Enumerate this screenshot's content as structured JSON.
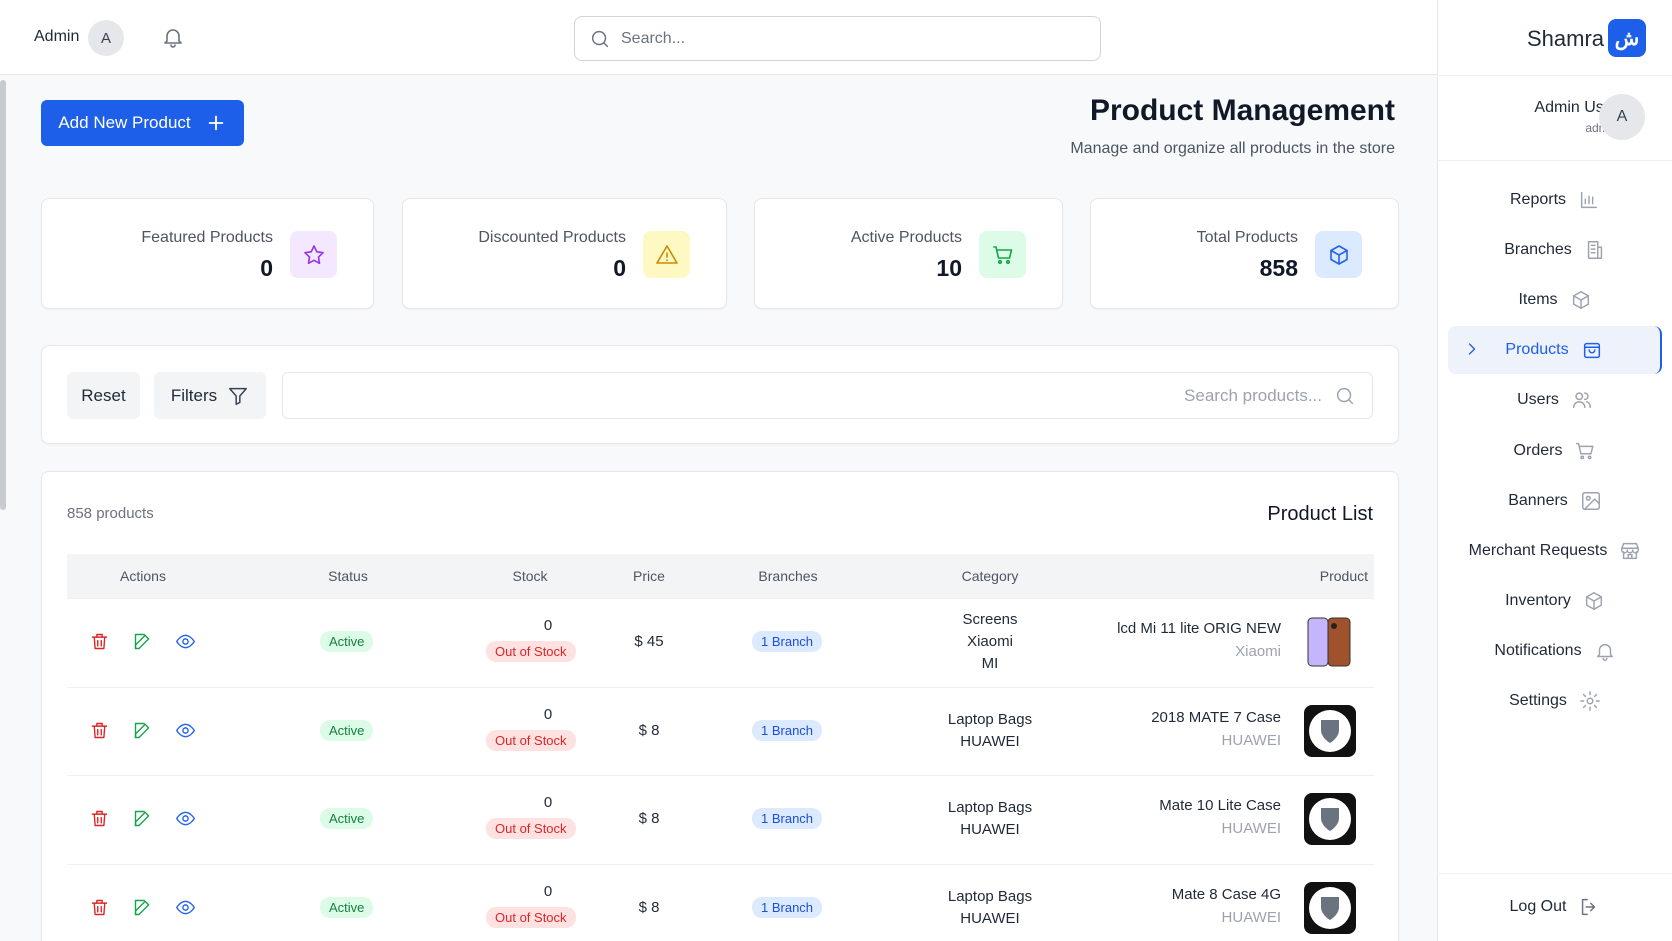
{
  "header": {
    "user": "Admin",
    "avatar": "A",
    "search_placeholder": "Search..."
  },
  "sidebar": {
    "brand": "Shamra",
    "logo": "ش",
    "user_name": "Admin User",
    "user_role": "admin",
    "avatar": "A",
    "nav": [
      "Reports",
      "Branches",
      "Items",
      "Products",
      "Users",
      "Orders",
      "Banners",
      "Merchant Requests",
      "Inventory",
      "Notifications",
      "Settings"
    ],
    "logout": "Log Out"
  },
  "page": {
    "title": "Product Management",
    "subtitle": "Manage and organize all products in the store",
    "add_button": "Add New Product"
  },
  "stats": [
    {
      "label": "Featured Products",
      "value": 0
    },
    {
      "label": "Discounted Products",
      "value": 0
    },
    {
      "label": "Active Products",
      "value": 10
    },
    {
      "label": "Total Products",
      "value": 858
    }
  ],
  "filters": {
    "reset": "Reset",
    "filters": "Filters",
    "search_placeholder": "Search products..."
  },
  "table": {
    "count": "858 products",
    "title": "Product List",
    "columns": [
      "Actions",
      "Status",
      "Stock",
      "Price",
      "Branches",
      "Category",
      "Product"
    ],
    "rows": [
      {
        "status": "Active",
        "stock": "0",
        "stock_status": "Out of Stock",
        "price": "$ 45",
        "branches": "1 Branch",
        "category": [
          "Screens",
          "Xiaomi",
          "MI"
        ],
        "name": "lcd Mi 11 lite ORIG NEW",
        "brand": "Xiaomi"
      },
      {
        "status": "Active",
        "stock": "0",
        "stock_status": "Out of Stock",
        "price": "$ 8",
        "branches": "1 Branch",
        "category": [
          "Laptop Bags",
          "HUAWEI"
        ],
        "name": "2018 MATE 7 Case",
        "brand": "HUAWEI"
      },
      {
        "status": "Active",
        "stock": "0",
        "stock_status": "Out of Stock",
        "price": "$ 8",
        "branches": "1 Branch",
        "category": [
          "Laptop Bags",
          "HUAWEI"
        ],
        "name": "Mate 10 Lite Case",
        "brand": "HUAWEI"
      },
      {
        "status": "Active",
        "stock": "0",
        "stock_status": "Out of Stock",
        "price": "$ 8",
        "branches": "1 Branch",
        "category": [
          "Laptop Bags",
          "HUAWEI"
        ],
        "name": "Mate 8 Case 4G",
        "brand": "HUAWEI"
      }
    ]
  }
}
